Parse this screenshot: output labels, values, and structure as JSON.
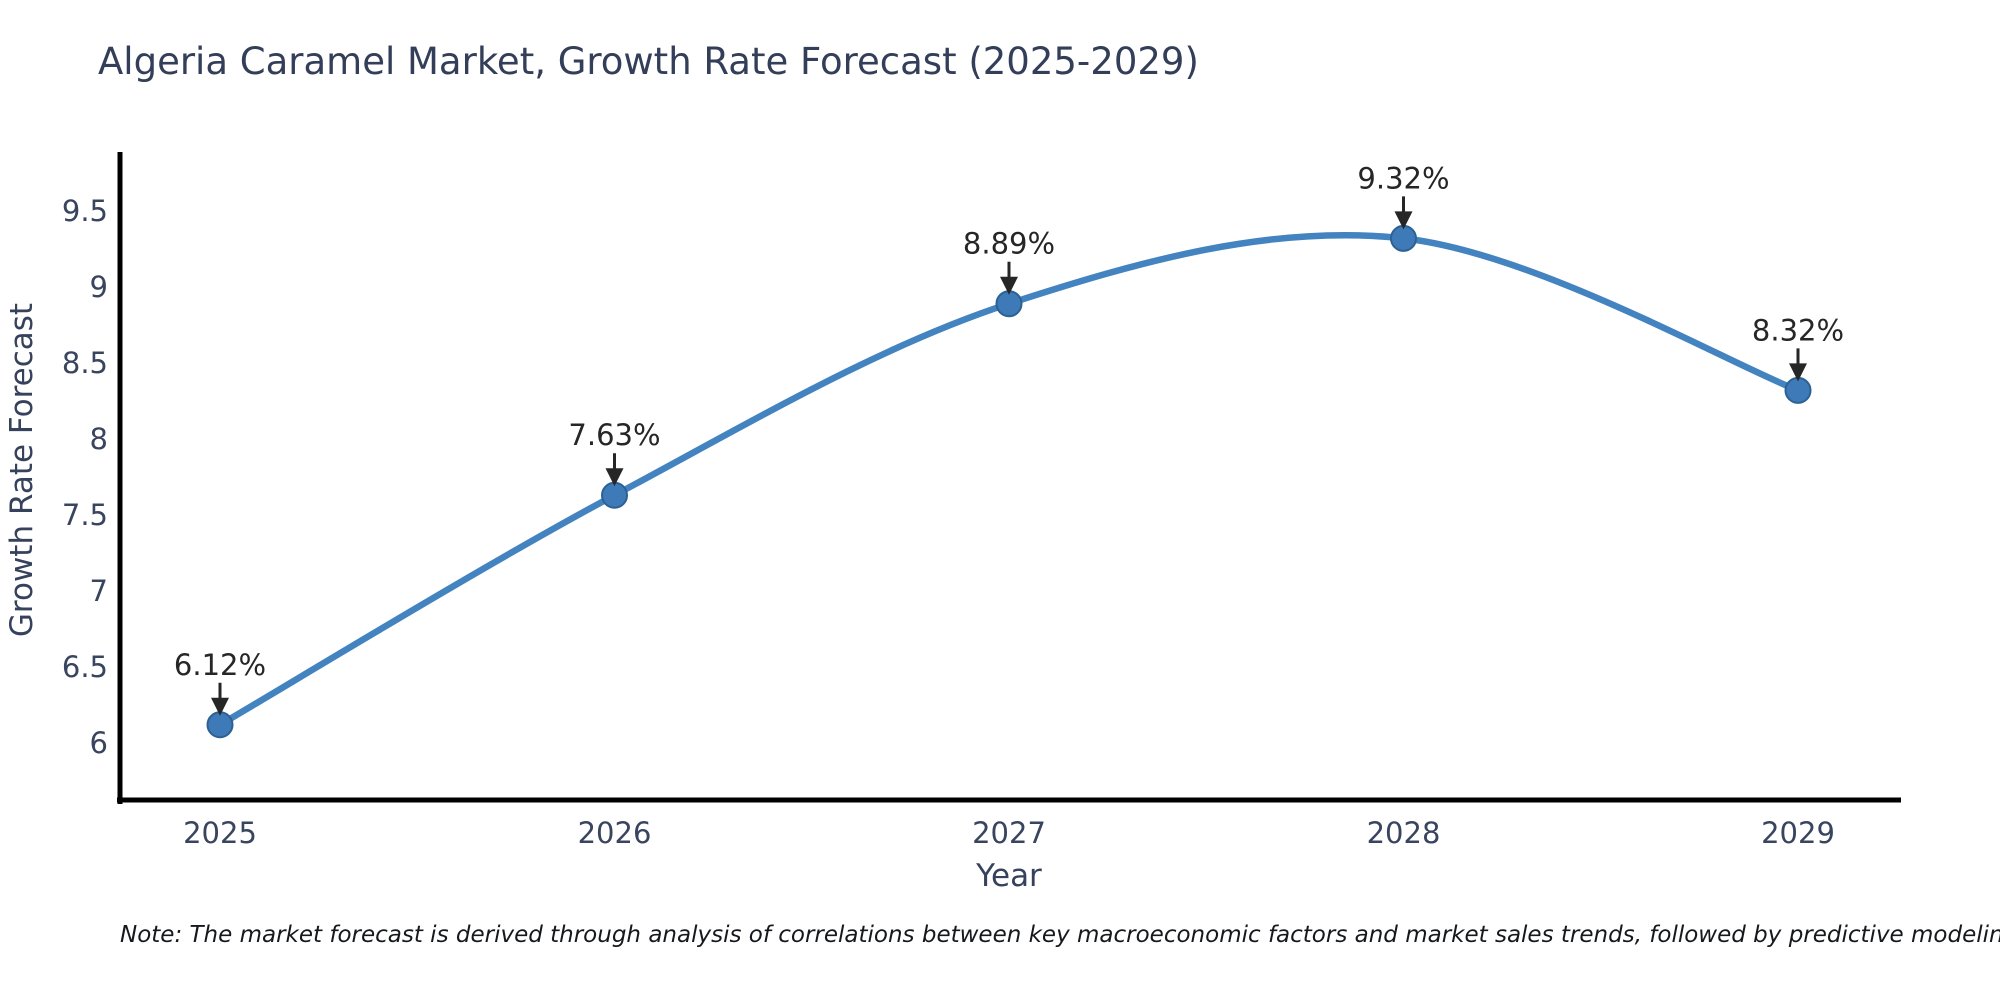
{
  "chart_data": {
    "type": "line",
    "title": "Algeria Caramel Market, Growth Rate Forecast (2025-2029)",
    "xlabel": "Year",
    "ylabel": "Growth Rate Forecast",
    "categories": [
      "2025",
      "2026",
      "2027",
      "2028",
      "2029"
    ],
    "x": [
      2025,
      2026,
      2027,
      2028,
      2029
    ],
    "series": [
      {
        "name": "Growth Rate Forecast",
        "values": [
          6.12,
          7.63,
          8.89,
          9.32,
          8.32
        ],
        "point_labels": [
          "6.12%",
          "7.63%",
          "8.89%",
          "9.32%",
          "8.32%"
        ]
      }
    ],
    "yticks": [
      6,
      6.5,
      7,
      7.5,
      8,
      8.5,
      9,
      9.5
    ],
    "ytick_labels": [
      "6",
      "6.5",
      "7",
      "7.5",
      "8",
      "8.5",
      "9",
      "9.5"
    ],
    "ylim": [
      5.58,
      9.92
    ],
    "xlim": [
      2024.74,
      2029.27
    ],
    "grid": false,
    "legend": false,
    "style": {
      "line_color": "#4283c0",
      "marker_fill": "#3d7ab7",
      "marker_edge": "#2d6194",
      "axis_color": "#000000",
      "tick_label_color": "#39455f",
      "annotation_color": "#262626"
    }
  },
  "footnote": "Note: The market forecast is derived through analysis of correlations between key macroeconomic factors and market sales trends, followed by predictive modeling to project future sales"
}
